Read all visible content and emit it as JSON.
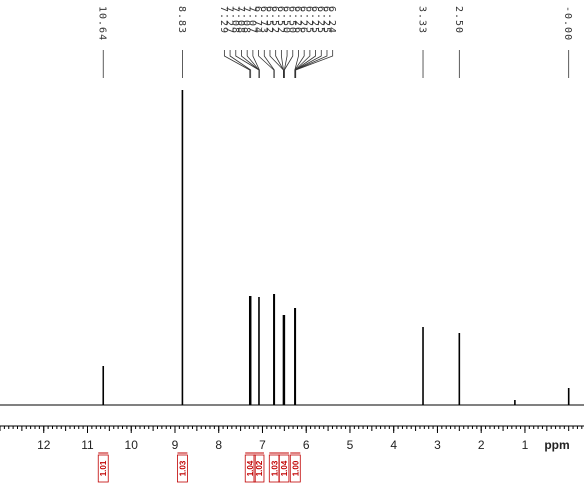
{
  "chart_data": {
    "type": "spectrum",
    "x_label": "ppm",
    "xlim": [
      13.0,
      -0.35
    ],
    "xticks": [
      12,
      11,
      10,
      9,
      8,
      7,
      6,
      5,
      4,
      3,
      2,
      1
    ],
    "ylim": [
      0,
      320
    ],
    "color": "#000000",
    "signals": {
      "x": [
        10.64,
        8.83,
        7.29,
        7.27,
        7.08,
        6.74,
        6.73,
        6.52,
        6.5,
        6.26,
        6.25,
        3.33,
        2.5,
        1.23,
        0.0
      ],
      "values": [
        39,
        315,
        109,
        109,
        108,
        111,
        111,
        90,
        90,
        97,
        97,
        78,
        72,
        5,
        17
      ]
    },
    "peak_labels": [
      10.64,
      8.83,
      7.29,
      7.27,
      7.08,
      7.08,
      7.08,
      7.07,
      6.74,
      6.73,
      6.52,
      6.52,
      6.52,
      {
        "value": 6.5,
        "label": "6.50"
      },
      {
        "value": 6.5,
        "label": "6.50"
      },
      6.26,
      6.26,
      6.25,
      6.25,
      6.25,
      6.25,
      6.24,
      3.33,
      {
        "value": 2.5,
        "label": "2.50"
      },
      {
        "value": 0,
        "label": "-0.00"
      }
    ],
    "integrals": {
      "x": [
        10.64,
        8.83,
        7.28,
        7.08,
        6.73,
        6.51,
        6.25
      ],
      "values": [
        1.01,
        1.03,
        1.04,
        1.02,
        1.03,
        1.04,
        1.0
      ],
      "value_labels": [
        "1.01",
        "1.03",
        "1.04",
        "1.02",
        "1.03",
        "1.04",
        "1.00"
      ],
      "color": "#c00000"
    }
  }
}
